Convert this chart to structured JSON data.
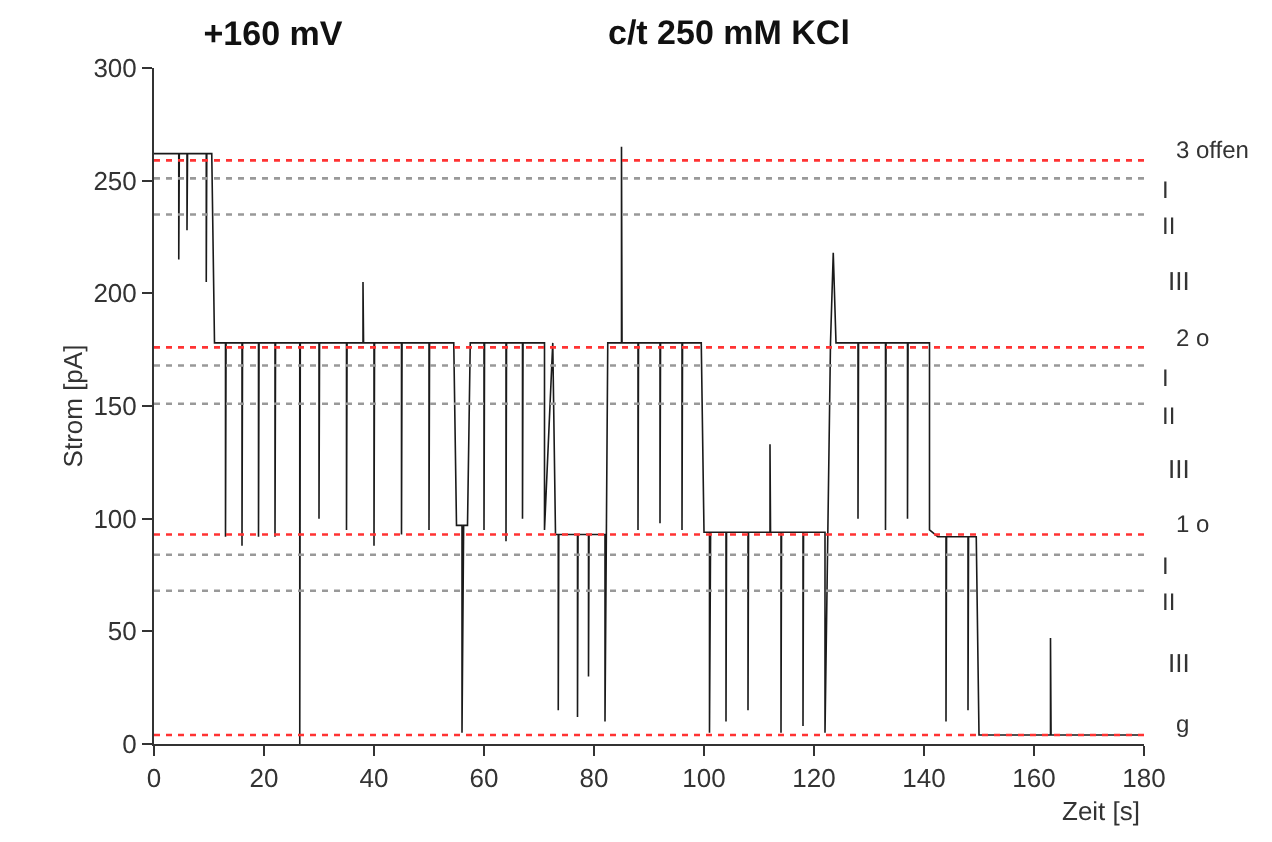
{
  "chart_data": {
    "type": "line",
    "title": "+160 mV",
    "subtitle": "c/t 250 mM KCl",
    "xlabel": "Zeit [s]",
    "ylabel": "Strom [pA]",
    "xlim": [
      0,
      180
    ],
    "xticks": [
      0,
      20,
      40,
      60,
      80,
      100,
      120,
      140,
      160,
      180
    ],
    "ylim": [
      0,
      300
    ],
    "yticks": [
      0,
      50,
      100,
      150,
      200,
      250,
      300
    ],
    "marker": "none",
    "line_style": "solid",
    "series": [
      {
        "color": "#1a1a1a",
        "x": [
          0,
          4.5,
          4.5,
          4.6,
          6,
          6,
          6.1,
          9.5,
          9.5,
          9.6,
          10.5,
          11,
          13,
          13,
          13.1,
          16,
          16,
          16.1,
          19,
          19,
          19.1,
          22,
          22,
          22.1,
          26.5,
          26.5,
          26.6,
          30,
          30,
          30.1,
          35,
          35,
          35.1,
          38,
          38,
          38.1,
          40,
          40,
          40.1,
          45,
          45,
          45.1,
          50,
          50,
          50.1,
          54.5,
          55,
          56,
          56,
          56.3,
          57,
          57.5,
          60,
          60,
          60.1,
          64,
          64,
          64.1,
          67,
          67,
          67.1,
          71,
          71,
          72.5,
          73,
          73.5,
          73.5,
          73.6,
          77,
          77,
          77.1,
          79,
          79,
          79.1,
          82,
          82,
          82.5,
          85,
          85,
          85.1,
          88,
          88,
          88.1,
          92,
          92,
          92.1,
          96,
          96,
          96.1,
          99.5,
          100,
          101,
          101,
          101.2,
          104,
          104,
          104.1,
          108,
          108,
          108.1,
          112,
          112,
          112.1,
          114,
          114,
          114.1,
          118,
          118,
          118.1,
          122,
          122,
          123,
          123.5,
          124,
          128,
          128,
          128.1,
          133,
          133,
          133.1,
          137,
          137,
          137.1,
          141,
          141,
          142.5,
          144,
          144,
          144.1,
          148,
          148,
          148.1,
          149.5,
          150,
          163,
          163,
          163.1,
          180
        ],
        "values": [
          262,
          262,
          215,
          262,
          262,
          228,
          262,
          262,
          205,
          262,
          262,
          178,
          178,
          92,
          178,
          178,
          88,
          178,
          178,
          92,
          178,
          178,
          92,
          178,
          178,
          0,
          178,
          178,
          100,
          178,
          178,
          95,
          178,
          178,
          205,
          178,
          178,
          88,
          178,
          178,
          93,
          178,
          178,
          95,
          178,
          178,
          97,
          97,
          5,
          97,
          97,
          178,
          178,
          95,
          178,
          178,
          90,
          178,
          178,
          100,
          178,
          178,
          95,
          178,
          93,
          93,
          15,
          93,
          93,
          12,
          93,
          93,
          30,
          93,
          93,
          10,
          178,
          178,
          265,
          178,
          178,
          95,
          178,
          178,
          98,
          178,
          178,
          95,
          178,
          178,
          94,
          94,
          5,
          94,
          94,
          10,
          94,
          94,
          15,
          94,
          94,
          133,
          94,
          94,
          5,
          94,
          94,
          8,
          94,
          94,
          5,
          178,
          218,
          178,
          178,
          100,
          178,
          178,
          95,
          178,
          178,
          100,
          178,
          178,
          95,
          92,
          92,
          10,
          92,
          92,
          15,
          92,
          92,
          4,
          4,
          47,
          4,
          4
        ]
      }
    ],
    "ref_lines": [
      {
        "axis": "y",
        "value": 259,
        "label": "3 offen",
        "color": "#ff3333",
        "line_style": "dotted"
      },
      {
        "axis": "y",
        "value": 251,
        "label": "I",
        "color": "#999999",
        "line_style": "dotted"
      },
      {
        "axis": "y",
        "value": 235,
        "label": "II",
        "color": "#999999",
        "line_style": "dotted"
      },
      {
        "axis": "y",
        "value": 176,
        "label": "2 o",
        "color": "#ff3333",
        "line_style": "dotted"
      },
      {
        "axis": "y",
        "value": 168,
        "label": "I",
        "color": "#999999",
        "line_style": "dotted"
      },
      {
        "axis": "y",
        "value": 151,
        "label": "II",
        "color": "#999999",
        "line_style": "dotted"
      },
      {
        "axis": "y",
        "value": 93,
        "label": "1 o",
        "color": "#ff3333",
        "line_style": "dotted"
      },
      {
        "axis": "y",
        "value": 84,
        "label": "I",
        "color": "#999999",
        "line_style": "dotted"
      },
      {
        "axis": "y",
        "value": 68,
        "label": "II",
        "color": "#999999",
        "line_style": "dotted"
      },
      {
        "axis": "y",
        "value": 4,
        "label": "g",
        "color": "#ff3333",
        "line_style": "dotted"
      }
    ],
    "annotations": [
      "III",
      "III",
      "III"
    ]
  }
}
